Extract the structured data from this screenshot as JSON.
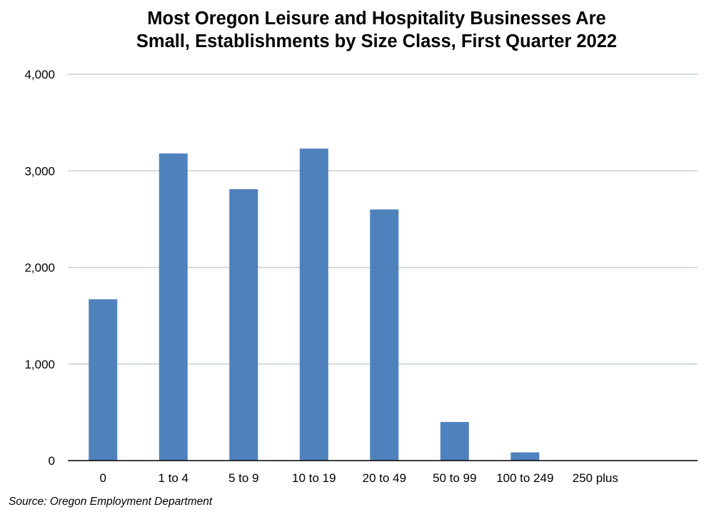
{
  "chart_data": {
    "type": "bar",
    "title_lines": [
      "Most Oregon Leisure and Hospitality Businesses Are",
      "Small, Establishments by Size Class, First Quarter 2022"
    ],
    "xlabel": "",
    "ylabel": "",
    "categories": [
      "0",
      "1 to 4",
      "5 to 9",
      "10 to 19",
      "20 to 49",
      "50 to 99",
      "100 to 249",
      "250 plus"
    ],
    "values": [
      1670,
      3180,
      2810,
      3230,
      2600,
      400,
      85,
      0
    ],
    "ylim": [
      0,
      4000
    ],
    "yticks": [
      0,
      1000,
      2000,
      3000,
      4000
    ],
    "ytick_labels": [
      "0",
      "1,000",
      "2,000",
      "3,000",
      "4,000"
    ],
    "grid": true,
    "legend": "none",
    "bar_color": "#4f81bd",
    "grid_color": "#c5cfd4",
    "source": "Source: Oregon Employment Department"
  }
}
